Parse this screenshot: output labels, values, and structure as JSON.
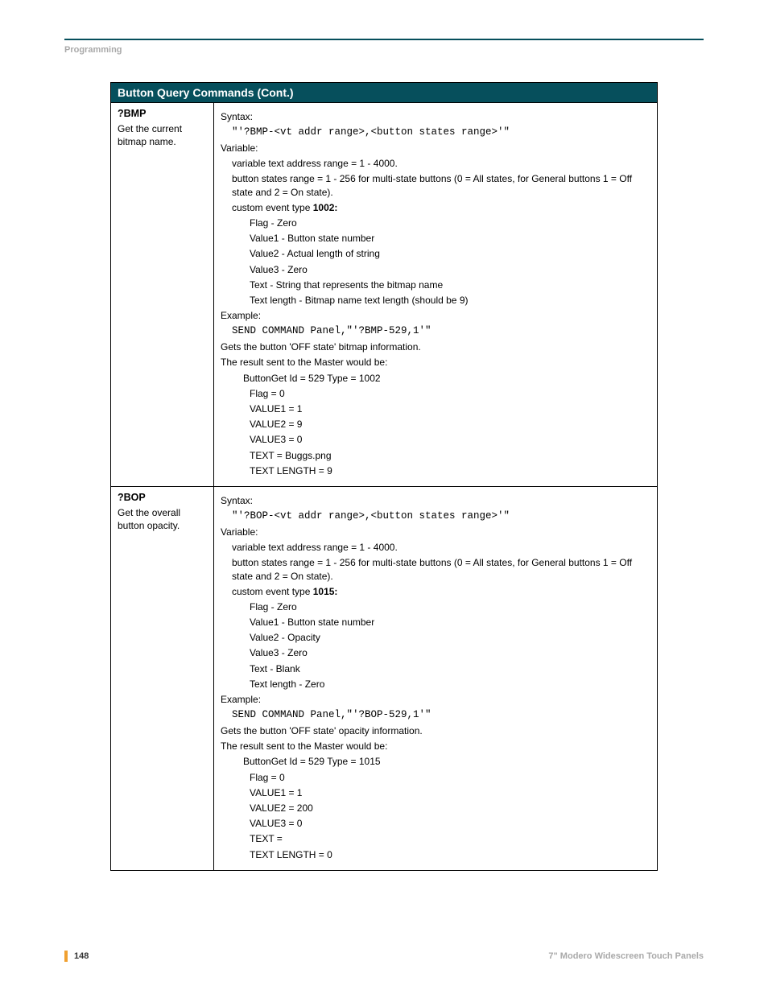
{
  "header": {
    "section": "Programming"
  },
  "table": {
    "title": "Button Query Commands (Cont.)",
    "rows": [
      {
        "cmd": "?BMP",
        "desc": "Get the current bitmap name.",
        "r": {
          "syntax_label": "Syntax:",
          "syntax_code": "\"'?BMP-<vt addr range>,<button states range>'\"",
          "variable_label": "Variable:",
          "var1": "variable text address range = 1 - 4000.",
          "var2": "button states range = 1 - 256 for multi-state buttons (0 = All states, for General buttons 1 = Off state and 2 = On state).",
          "cet_prefix": "custom event type ",
          "cet_num": "1002:",
          "flag": "Flag   - Zero",
          "v1": "Value1 - Button state number",
          "v2": "Value2 - Actual length of string",
          "v3": "Value3 - Zero",
          "text": "Text   - String that represents the bitmap name",
          "tlen": "Text length - Bitmap name text length (should be 9)",
          "example_label": "Example:",
          "example_code": "SEND COMMAND Panel,\"'?BMP-529,1'\"",
          "gets": "Gets the button 'OFF state' bitmap information.",
          "result_label": "The result sent to the Master would be:",
          "r1": "ButtonGet Id = 529 Type = 1002",
          "r2": "Flag  = 0",
          "r3": "VALUE1 = 1",
          "r4": "VALUE2 = 9",
          "r5": "VALUE3 = 0",
          "r6": "TEXT  = Buggs.png",
          "r7": "TEXT LENGTH = 9"
        }
      },
      {
        "cmd": "?BOP",
        "desc": "Get the overall button opacity.",
        "r": {
          "syntax_label": "Syntax:",
          "syntax_code": "\"'?BOP-<vt addr range>,<button states range>'\"",
          "variable_label": "Variable:",
          "var1": "variable text address range = 1 - 4000.",
          "var2": "button states range = 1 - 256 for multi-state buttons (0 = All states, for General buttons 1 = Off state and 2 = On state).",
          "cet_prefix": "custom event type ",
          "cet_num": "1015:",
          "flag": "Flag   - Zero",
          "v1": "Value1 - Button state number",
          "v2": "Value2 - Opacity",
          "v3": "Value3 - Zero",
          "text": "Text   - Blank",
          "tlen": "Text length - Zero",
          "example_label": "Example:",
          "example_code": "SEND COMMAND Panel,\"'?BOP-529,1'\"",
          "gets": "Gets the button 'OFF state' opacity information.",
          "result_label": "The result sent to the Master would be:",
          "r1": "ButtonGet Id = 529 Type = 1015",
          "r2": "Flag  = 0",
          "r3": "VALUE1 = 1",
          "r4": "VALUE2 = 200",
          "r5": "VALUE3 = 0",
          "r6": "TEXT  =",
          "r7": "TEXT LENGTH = 0"
        }
      }
    ]
  },
  "footer": {
    "page": "148",
    "title": "7\" Modero Widescreen Touch Panels"
  },
  "colors": {
    "header_bg": "#064f5c",
    "accent": "#f0a030",
    "muted": "#a9a9a9"
  }
}
